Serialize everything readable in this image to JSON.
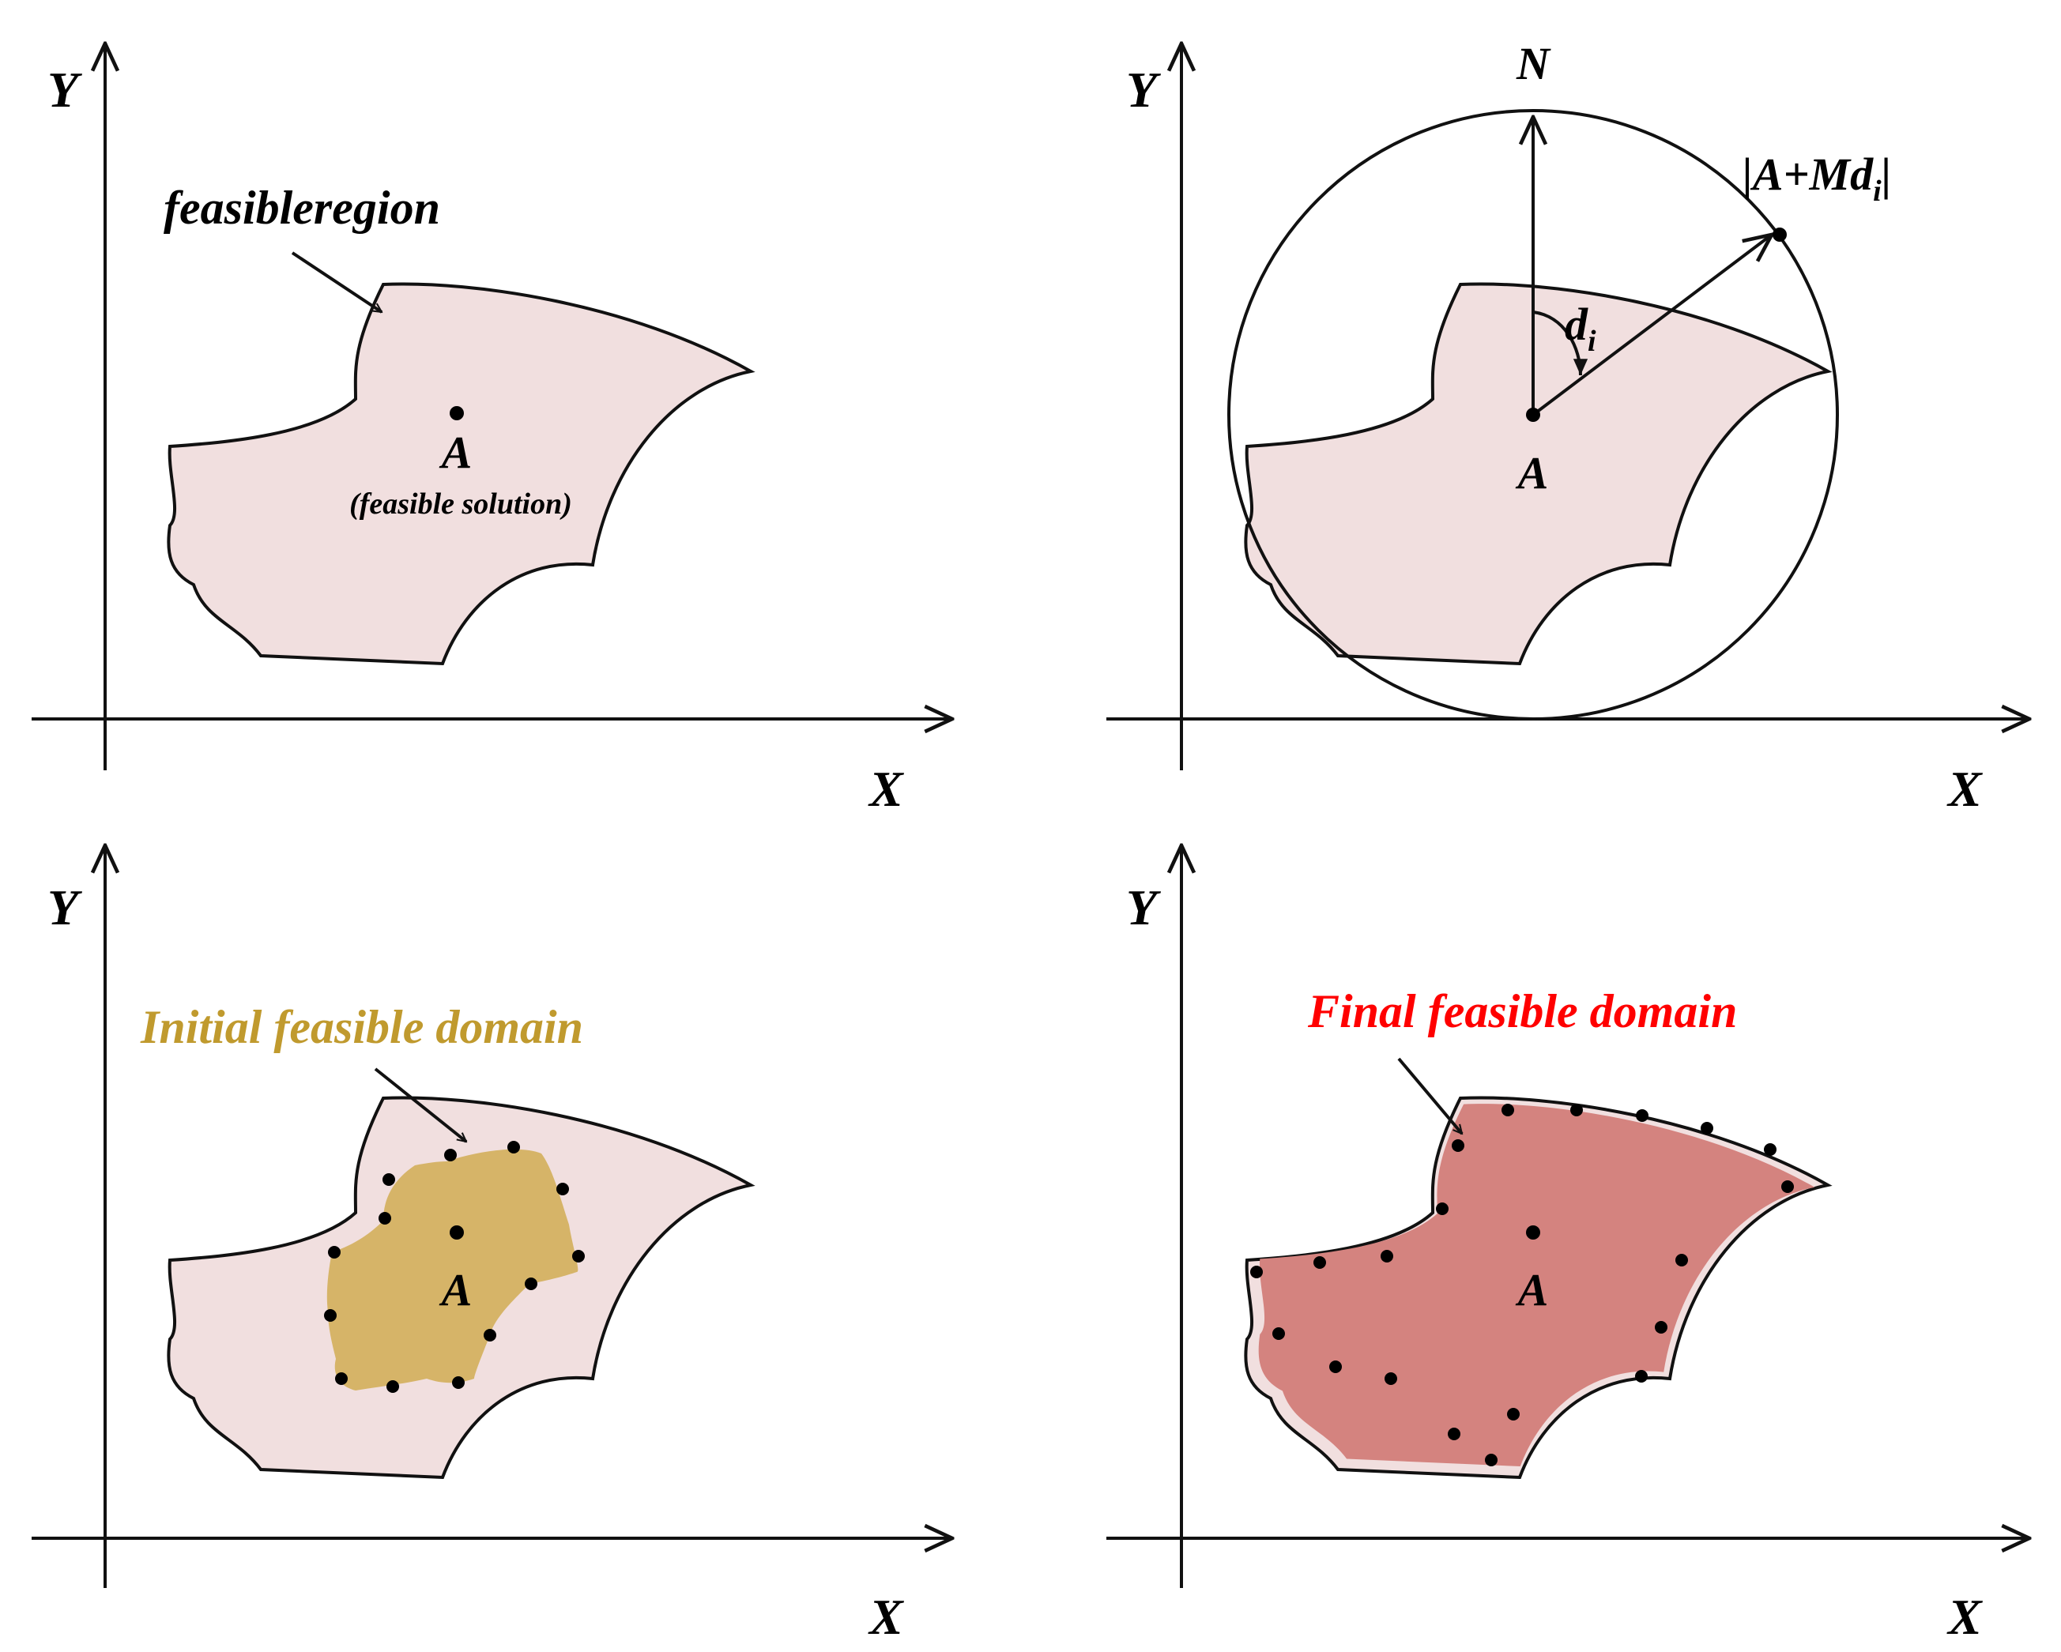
{
  "panels": [
    {
      "id": "p1",
      "x_axis_label": "X",
      "y_axis_label": "Y",
      "point_label": "A",
      "region_label": "feasibleregion",
      "point_caption": "(feasible solution)"
    },
    {
      "id": "p2",
      "x_axis_label": "X",
      "y_axis_label": "Y",
      "point_label": "A",
      "north_label": "N",
      "direction_label": "d",
      "direction_subscript": "i",
      "search_point_label": "|A+Md",
      "search_point_subscript": "i",
      "search_point_suffix": "|"
    },
    {
      "id": "p3",
      "x_axis_label": "X",
      "y_axis_label": "Y",
      "point_label": "A",
      "domain_label": "Initial feasible domain",
      "domain_color": "#c09a2e",
      "domain_fill": "#d6b468"
    },
    {
      "id": "p4",
      "x_axis_label": "X",
      "y_axis_label": "Y",
      "point_label": "A",
      "domain_label": "Final feasible domain",
      "domain_color": "#ff0000",
      "domain_fill": "#d4837f"
    }
  ],
  "colors": {
    "region_fill": "#f1dfdf",
    "stroke": "#111111"
  }
}
